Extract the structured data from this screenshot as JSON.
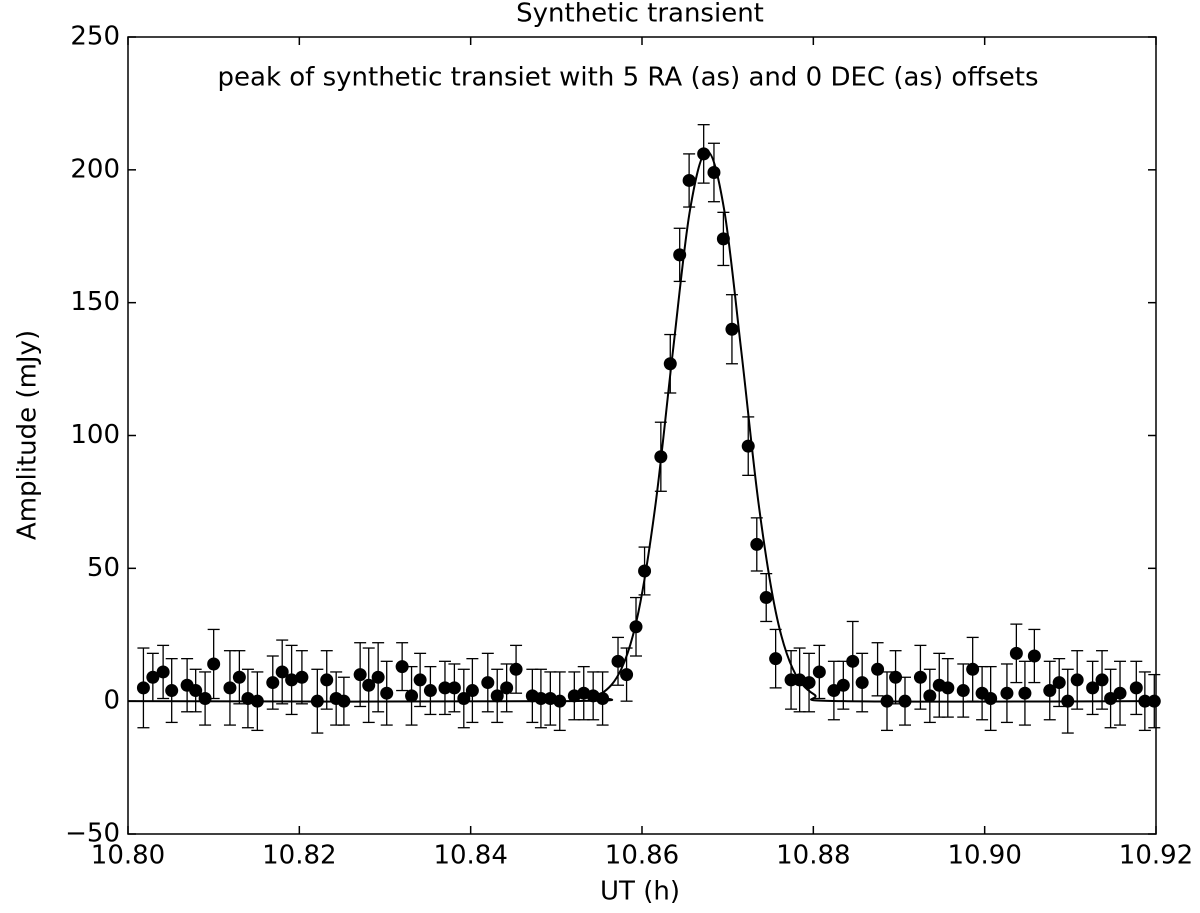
{
  "chart_data": {
    "type": "scatter",
    "title": "Synthetic transient",
    "annotation": "peak of synthetic transiet with 5 RA (as) and 0 DEC (as) offsets",
    "xlabel": "UT (h)",
    "ylabel": "Amplitude (mJy)",
    "color": "#000000",
    "x": [
      10.8018,
      10.8029,
      10.8041,
      10.8051,
      10.8069,
      10.8079,
      10.809,
      10.81,
      10.8119,
      10.813,
      10.814,
      10.8151,
      10.8169,
      10.818,
      10.8191,
      10.8203,
      10.8221,
      10.8232,
      10.8243,
      10.8252,
      10.8271,
      10.8281,
      10.8292,
      10.8302,
      10.832,
      10.8331,
      10.8341,
      10.8353,
      10.837,
      10.8381,
      10.8392,
      10.8402,
      10.842,
      10.8431,
      10.8442,
      10.8453,
      10.8472,
      10.8482,
      10.8493,
      10.8504,
      10.8521,
      10.8532,
      10.8543,
      10.8554,
      10.8572,
      10.8582,
      10.8593,
      10.8603,
      10.8622,
      10.8633,
      10.8644,
      10.8655,
      10.8672,
      10.8684,
      10.8695,
      10.8705,
      10.8724,
      10.8734,
      10.8745,
      10.8756,
      10.8774,
      10.8784,
      10.8795,
      10.8807,
      10.8824,
      10.8835,
      10.8846,
      10.8857,
      10.8875,
      10.8886,
      10.8896,
      10.8907,
      10.8925,
      10.8936,
      10.8947,
      10.8957,
      10.8975,
      10.8986,
      10.8997,
      10.9007,
      10.9026,
      10.9037,
      10.9047,
      10.9058,
      10.9076,
      10.9087,
      10.9097,
      10.9108,
      10.9126,
      10.9137,
      10.9147,
      10.9158,
      10.9177,
      10.9187,
      10.9198
    ],
    "values": [
      5,
      9,
      11,
      4,
      6,
      4,
      1,
      14,
      5,
      9,
      1,
      0,
      7,
      11,
      8,
      9,
      0,
      8,
      1,
      0,
      10,
      6,
      9,
      3,
      13,
      2,
      8,
      4,
      5,
      5,
      1,
      4,
      7,
      2,
      5,
      12,
      2,
      1,
      1,
      0,
      2,
      3,
      2,
      1,
      15,
      10,
      28,
      49,
      92,
      127,
      168,
      196,
      206,
      199,
      174,
      140,
      96,
      59,
      39,
      16,
      8,
      8,
      7,
      11,
      4,
      6,
      15,
      7,
      12,
      0,
      9,
      0,
      9,
      2,
      6,
      5,
      4,
      12,
      3,
      1,
      3,
      18,
      3,
      17,
      4,
      7,
      0,
      8,
      5,
      8,
      1,
      3,
      5,
      0,
      0
    ],
    "errors": [
      15,
      9,
      10,
      12,
      10,
      8,
      10,
      13,
      14,
      10,
      11,
      11,
      10,
      12,
      13,
      10,
      12,
      11,
      10,
      9,
      12,
      14,
      13,
      12,
      9,
      11,
      10,
      9,
      10,
      9,
      11,
      12,
      11,
      10,
      9,
      9,
      10,
      11,
      10,
      11,
      9,
      10,
      9,
      10,
      9,
      10,
      11,
      9,
      13,
      11,
      10,
      10,
      11,
      11,
      10,
      13,
      11,
      10,
      9,
      11,
      11,
      12,
      11,
      10,
      11,
      9,
      15,
      11,
      10,
      11,
      10,
      9,
      12,
      10,
      12,
      11,
      10,
      12,
      10,
      12,
      11,
      11,
      12,
      10,
      11,
      9,
      12,
      11,
      10,
      11,
      11,
      12,
      10,
      11,
      10
    ],
    "fit": {
      "x": [
        10.8,
        10.8516,
        10.8551,
        10.8576,
        10.8596,
        10.8616,
        10.8636,
        10.8656,
        10.8676,
        10.8696,
        10.8716,
        10.8736,
        10.8756,
        10.8776,
        10.8801,
        10.8836,
        10.92
      ],
      "values": [
        0,
        0,
        2.5,
        12.2,
        33.8,
        74.6,
        131.5,
        184.8,
        207,
        184.8,
        131.5,
        74.6,
        33.8,
        12.2,
        2.5,
        0,
        0
      ]
    },
    "xlim": [
      10.8,
      10.92
    ],
    "ylim": [
      -50,
      250
    ],
    "xticks": [
      {
        "value": 10.8,
        "label": "10.80"
      },
      10.82,
      10.84,
      10.86,
      10.88,
      {
        "value": 10.9,
        "label": "10.90"
      },
      10.92
    ],
    "yticks": [
      {
        "value": -50,
        "label": "−50"
      },
      0,
      50,
      100,
      150,
      200,
      250
    ]
  }
}
